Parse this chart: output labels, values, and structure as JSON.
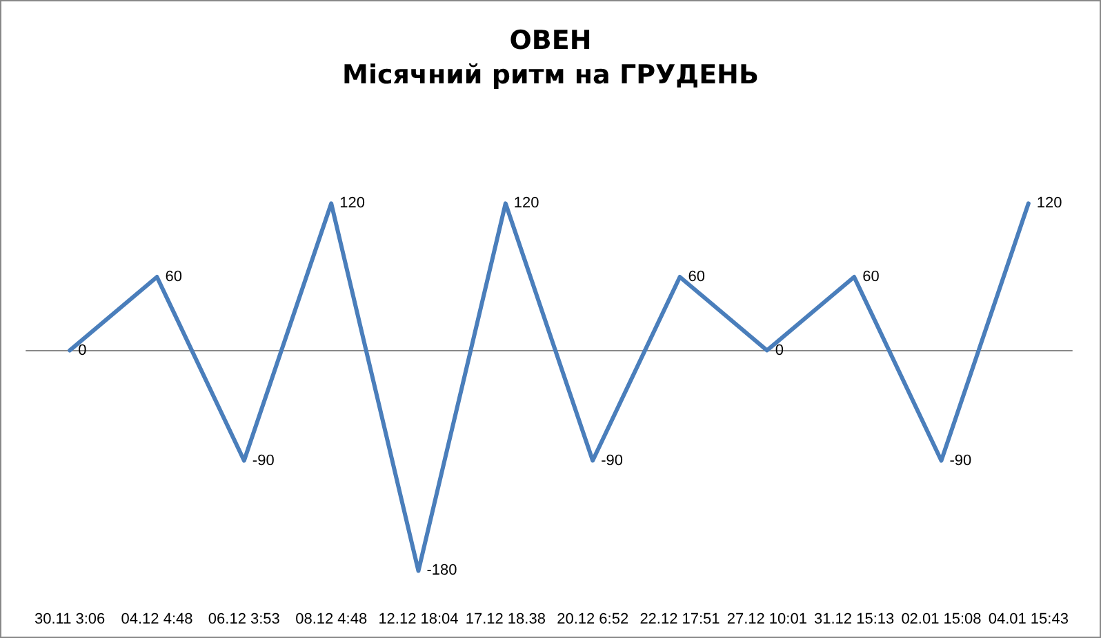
{
  "chart_data": {
    "type": "line",
    "title": "ОВЕН",
    "subtitle": "Місячний ритм на ГРУДЕНЬ",
    "categories": [
      "30.11 3:06",
      "04.12 4:48",
      "06.12 3:53",
      "08.12 4:48",
      "12.12 18:04",
      "17.12 18.38",
      "20.12 6:52",
      "22.12 17:51",
      "27.12 10:01",
      "31.12 15:13",
      "02.01 15:08",
      "04.01 15:43"
    ],
    "series": [
      {
        "color": "#4a7ebb",
        "values": [
          0,
          60,
          -90,
          120,
          -180,
          120,
          -90,
          60,
          0,
          60,
          -90,
          120
        ]
      }
    ],
    "data_labels": true,
    "tick_labels": "x",
    "grid": false,
    "marker": "none",
    "line_style": "solid"
  }
}
